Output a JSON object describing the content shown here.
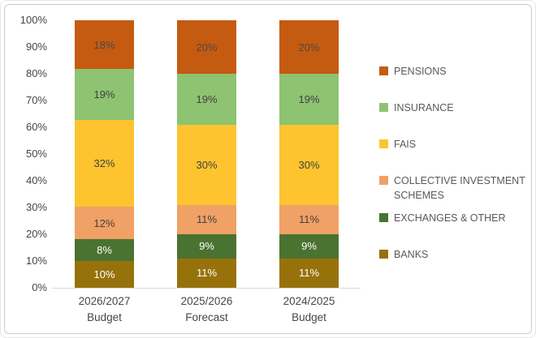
{
  "chart_data": {
    "type": "bar",
    "stacked": true,
    "percent_stacked": true,
    "title": "",
    "xlabel": "",
    "ylabel": "",
    "ylim": [
      0,
      100
    ],
    "grid": false,
    "legend_position": "right",
    "categories": [
      "2026/2027\nBudget",
      "2025/2026\nForecast",
      "2024/2025\nBudget"
    ],
    "y_ticks": [
      "0%",
      "10%",
      "20%",
      "30%",
      "40%",
      "50%",
      "60%",
      "70%",
      "80%",
      "90%",
      "100%"
    ],
    "series": [
      {
        "name": "PENSIONS",
        "color": "#C55A11",
        "label_color": "#4a4a4a",
        "values": [
          18,
          20,
          20
        ],
        "labels": [
          "18%",
          "20%",
          "20%"
        ]
      },
      {
        "name": "INSURANCE",
        "color": "#8DC371",
        "label_color": "#404040",
        "values": [
          19,
          19,
          19
        ],
        "labels": [
          "19%",
          "19%",
          "19%"
        ]
      },
      {
        "name": "FAIS",
        "color": "#FDC42F",
        "label_color": "#404040",
        "values": [
          32,
          30,
          30
        ],
        "labels": [
          "32%",
          "30%",
          "30%"
        ]
      },
      {
        "name": "COLLECTIVE INVESTMENT SCHEMES",
        "color": "#F0A165",
        "label_color": "#404040",
        "values": [
          12,
          11,
          11
        ],
        "labels": [
          "12%",
          "11%",
          "11%"
        ]
      },
      {
        "name": "EXCHANGES & OTHER",
        "color": "#4A7230",
        "label_color": "#ffffff",
        "values": [
          8,
          9,
          9
        ],
        "labels": [
          "8%",
          "9%",
          "9%"
        ]
      },
      {
        "name": "BANKS",
        "color": "#97720B",
        "label_color": "#ffffff",
        "values": [
          10,
          11,
          11
        ],
        "labels": [
          "10%",
          "11%",
          "11%"
        ]
      }
    ]
  }
}
